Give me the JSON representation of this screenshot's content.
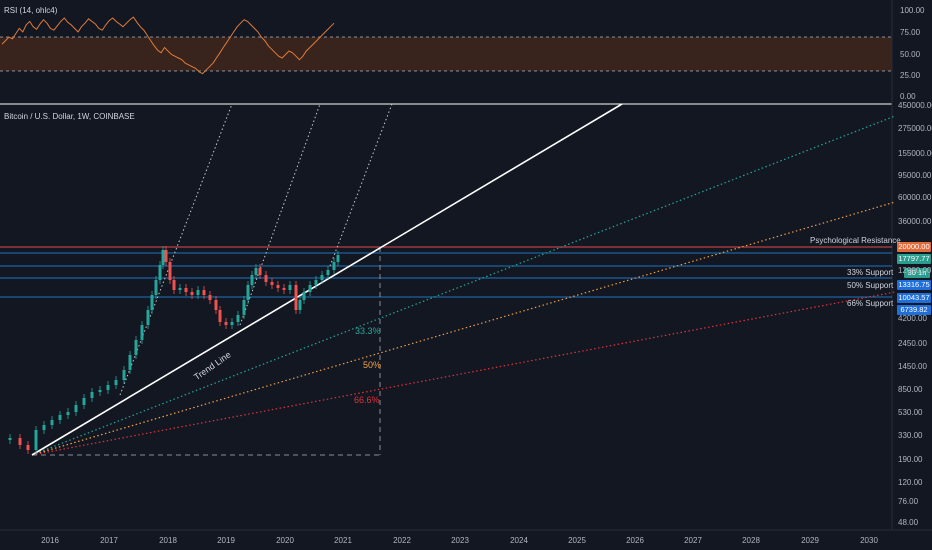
{
  "rsi": {
    "title": "RSI (14, ohlc4)",
    "ticks": [
      "100.00",
      "75.00",
      "50.00",
      "25.00",
      "0.00"
    ],
    "series": [
      62,
      66,
      70,
      68,
      74,
      80,
      76,
      84,
      88,
      82,
      79,
      85,
      90,
      86,
      80,
      78,
      83,
      88,
      92,
      87,
      84,
      80,
      76,
      82,
      86,
      91,
      88,
      85,
      80,
      78,
      84,
      89,
      92,
      88,
      85,
      82,
      86,
      90,
      93,
      87,
      82,
      78,
      72,
      66,
      60,
      55,
      52,
      58,
      54,
      50,
      48,
      46,
      44,
      40,
      38,
      36,
      34,
      30,
      28,
      32,
      36,
      40,
      46,
      52,
      58,
      64,
      70,
      76,
      82,
      86,
      90,
      88,
      84,
      80,
      76,
      70,
      66,
      60,
      56,
      52,
      48,
      46,
      50,
      54,
      52,
      48,
      44,
      48,
      54,
      58,
      62,
      66,
      70,
      74,
      78,
      82,
      86
    ]
  },
  "main": {
    "title": "Bitcoin / U.S. Dollar, 1W, COINBASE",
    "price_ticks": [
      "450000.00",
      "275000.00",
      "155000.00",
      "95000.00",
      "60000.00",
      "36000.00",
      "20000.00",
      "12000.00",
      "4200.00",
      "2450.00",
      "1450.00",
      "850.00",
      "530.00",
      "330.00",
      "190.00",
      "120.00",
      "76.00",
      "48.00"
    ],
    "years": [
      "2016",
      "2017",
      "2018",
      "2019",
      "2020",
      "2021",
      "2022",
      "2023",
      "2024",
      "2025",
      "2026",
      "2027",
      "2028",
      "2029",
      "2030"
    ],
    "price_tags": [
      {
        "value": "20000.00",
        "color": "#e06c3c"
      },
      {
        "value": "17797.77",
        "color": "#2a9d8f"
      },
      {
        "value": "30 1h",
        "color": "#2a9d8f"
      },
      {
        "value": "13316.75",
        "color": "#1e6fd9"
      },
      {
        "value": "10043.57",
        "color": "#1e6fd9"
      },
      {
        "value": "6739.82",
        "color": "#1e6fd9"
      }
    ],
    "levels": {
      "psych": "Psychological Resistance",
      "s33": "33% Support",
      "s50": "50% Support",
      "s66": "66% Support"
    },
    "fib": {
      "p33": "33.3%",
      "p50": "50%",
      "p66": "66.6%"
    },
    "trend_label": "Trend Line"
  }
}
